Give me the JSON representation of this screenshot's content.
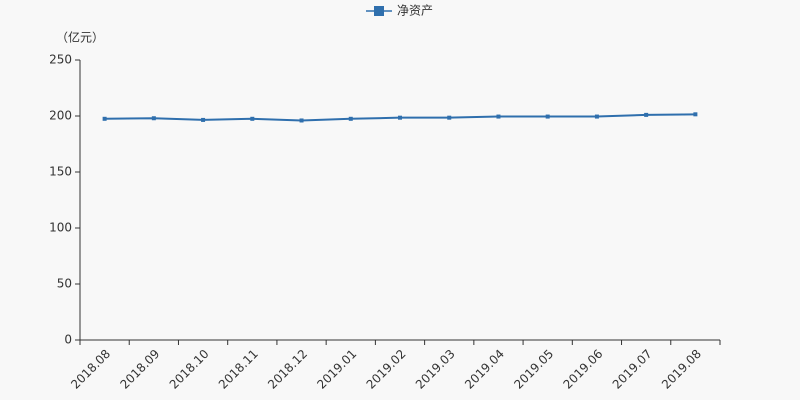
{
  "chart_data": {
    "type": "line",
    "y_label": "（亿元）",
    "categories": [
      "2018.08",
      "2018.09",
      "2018.10",
      "2018.11",
      "2018.12",
      "2019.01",
      "2019.02",
      "2019.03",
      "2019.04",
      "2019.05",
      "2019.06",
      "2019.07",
      "2019.08"
    ],
    "series": [
      {
        "name": "净资产",
        "color": "#2f6fad",
        "values": [
          197.5,
          198,
          196.5,
          197.5,
          196,
          197.5,
          198.5,
          198.5,
          199.5,
          199.5,
          199.5,
          201,
          201.5
        ]
      }
    ],
    "ylim": [
      0,
      250
    ],
    "yticks": [
      0,
      50,
      100,
      150,
      200,
      250
    ],
    "grid": false
  }
}
